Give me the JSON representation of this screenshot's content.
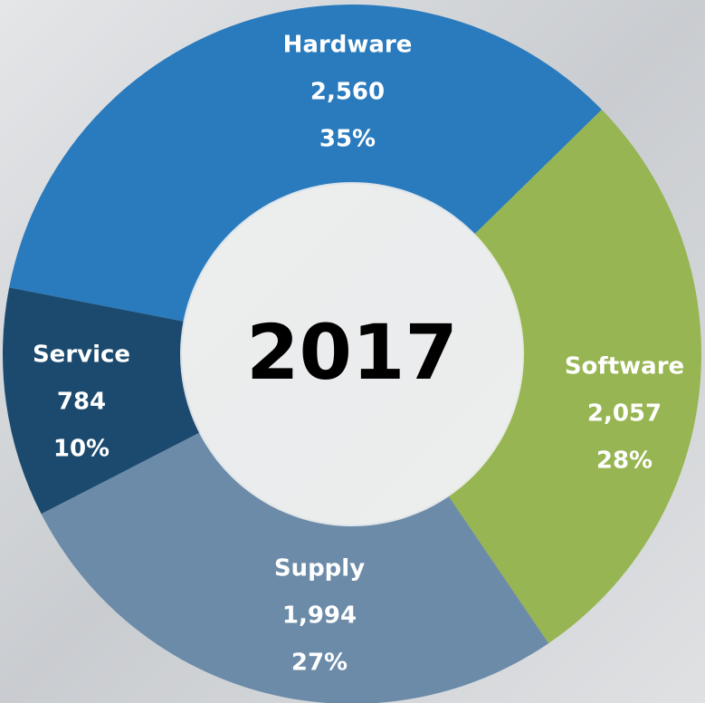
{
  "chart_data": {
    "type": "donut",
    "center_label": "2017",
    "categories": [
      "Hardware",
      "Software",
      "Supply",
      "Service"
    ],
    "values": [
      2560,
      2057,
      1994,
      784
    ],
    "value_labels": [
      "2,560",
      "2,057",
      "1,994",
      "784"
    ],
    "percentages": [
      35,
      28,
      27,
      10
    ],
    "percentage_labels": [
      "35%",
      "28%",
      "27%",
      "10%"
    ],
    "colors": [
      "#2a7bbd",
      "#97b552",
      "#6b8ba8",
      "#1b4a6e"
    ]
  }
}
